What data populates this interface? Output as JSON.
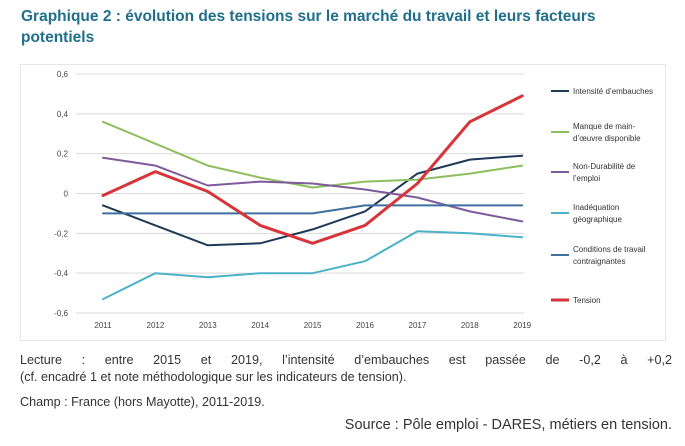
{
  "title": "Graphique 2 : évolution des tensions sur le marché du travail et leurs facteurs potentiels",
  "notes": {
    "line1": "Lecture : entre 2015 et 2019, l’intensité d’embauches est passée de -0,2 à +0,2",
    "line2": "(cf. encadré 1 et note méthodologique sur les indicateurs de tension).",
    "line3": "Champ : France (hors Mayotte), 2011-2019.",
    "source": "Source : Pôle emploi - DARES, métiers en tension."
  },
  "chart_data": {
    "type": "line",
    "x": [
      "2011",
      "2012",
      "2013",
      "2014",
      "2015",
      "2016",
      "2017",
      "2018",
      "2019"
    ],
    "ylim": [
      -0.6,
      0.6
    ],
    "yticks": [
      "-0,6",
      "-0,4",
      "-0,2",
      "0",
      "0,2",
      "0,4",
      "0,6"
    ],
    "grid": true,
    "legend_position": "right",
    "series": [
      {
        "name": "Intensité d’embauches",
        "color": "#1f3a57",
        "width": 2,
        "values": [
          -0.06,
          -0.16,
          -0.26,
          -0.25,
          -0.18,
          -0.09,
          0.1,
          0.17,
          0.19
        ]
      },
      {
        "name": "Manque de main-d’œuvre disponible",
        "color": "#8dbf5e",
        "width": 2,
        "values": [
          0.36,
          0.25,
          0.14,
          0.08,
          0.03,
          0.06,
          0.07,
          0.1,
          0.14
        ]
      },
      {
        "name": "Non-Durabilité de l’emploi",
        "color": "#7e5b9a",
        "width": 2,
        "values": [
          0.18,
          0.14,
          0.04,
          0.06,
          0.05,
          0.02,
          -0.02,
          -0.09,
          -0.14
        ]
      },
      {
        "name": "Inadéquation géographique",
        "color": "#4bb2c8",
        "width": 2,
        "values": [
          -0.53,
          -0.4,
          -0.42,
          -0.4,
          -0.4,
          -0.34,
          -0.19,
          -0.2,
          -0.22
        ]
      },
      {
        "name": "Conditions de travail contraignantes",
        "color": "#3f6f9e",
        "width": 2,
        "values": [
          -0.1,
          -0.1,
          -0.1,
          -0.1,
          -0.1,
          -0.06,
          -0.06,
          -0.06,
          -0.06
        ]
      },
      {
        "name": "Tension",
        "color": "#d7353a",
        "width": 3,
        "values": [
          -0.01,
          0.11,
          0.01,
          -0.16,
          -0.25,
          -0.16,
          0.05,
          0.36,
          0.49
        ]
      }
    ]
  }
}
